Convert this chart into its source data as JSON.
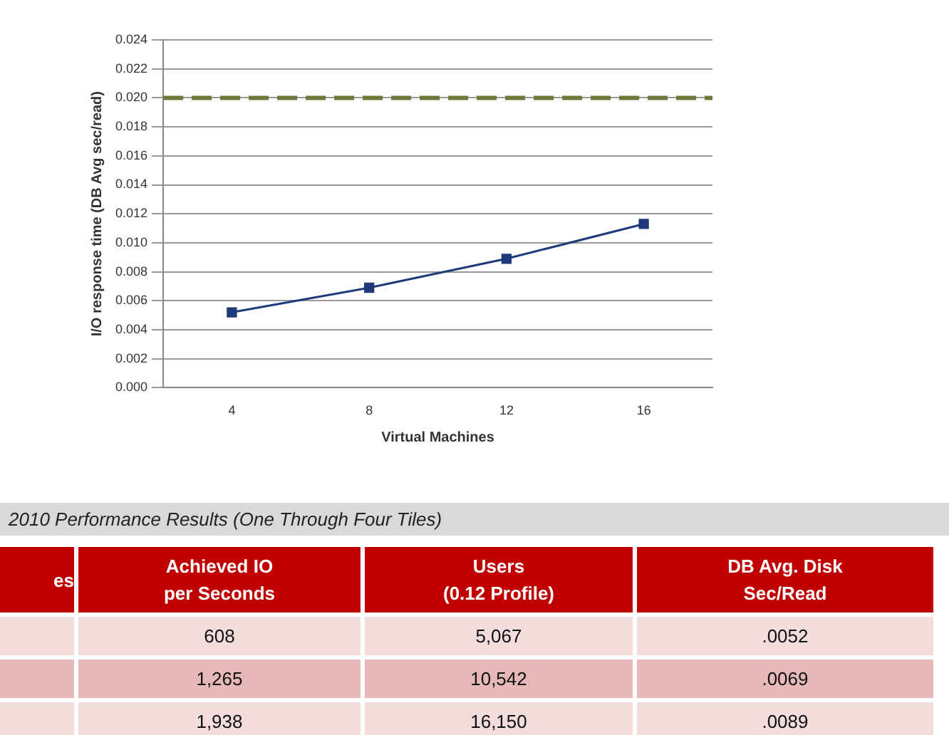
{
  "chart_data": [
    {
      "type": "line",
      "xlabel": "Virtual Machines",
      "ylabel": "I/O response time (DB Avg sec/read)",
      "categories": [
        "4",
        "8",
        "12",
        "16"
      ],
      "series": [
        {
          "color": "#1f3a7a",
          "values": [
            0.0052,
            0.0069,
            0.0089,
            0.0113
          ]
        }
      ],
      "ylim": [
        0,
        0.024
      ],
      "yticks": [
        {
          "value": 0,
          "label": "0.000"
        },
        {
          "value": 0.002,
          "label": "0.002"
        },
        {
          "value": 0.004,
          "label": "0.004"
        },
        {
          "value": 0.006,
          "label": "0.006"
        },
        {
          "value": 0.008,
          "label": "0.008"
        },
        {
          "value": 0.01,
          "label": "0.010"
        },
        {
          "value": 0.012,
          "label": "0.012"
        },
        {
          "value": 0.014,
          "label": "0.014"
        },
        {
          "value": 0.016,
          "label": "0.016"
        },
        {
          "value": 0.018,
          "label": "0.018"
        },
        {
          "value": 0.02,
          "label": "0.020"
        },
        {
          "value": 0.022,
          "label": "0.022"
        },
        {
          "value": 0.024,
          "label": "0.024"
        }
      ],
      "ref_lines": [
        {
          "axis": "y",
          "value": 0.02,
          "color": "#6b7a3a",
          "line_style": "dashed"
        }
      ],
      "grid": "y",
      "marker": "square",
      "line_style": "solid"
    },
    {
      "type": "other",
      "title": "2010 Performance Results (One Through Four Tiles)",
      "annotations": [
        "es",
        "Achieved IO\nper Seconds",
        "Users\n(0.12 Profile)",
        "DB Avg. Disk\nSec/Read",
        null,
        "608",
        "5,067",
        ".0052",
        null,
        "1,265",
        "10,542",
        ".0069",
        null,
        "1,938",
        "16,150",
        ".0089"
      ]
    }
  ]
}
